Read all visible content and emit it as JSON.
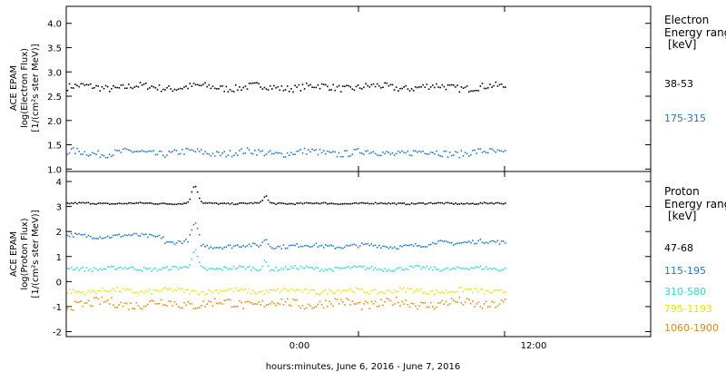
{
  "chart_data": [
    {
      "type": "scatter",
      "panel": "electron",
      "ylabel_lines": [
        "ACE EPAM",
        "log(Electron Flux)",
        "[1/(cm²s ster MeV)]"
      ],
      "ylim": [
        0.95,
        4.35
      ],
      "yticks": [
        "1.0",
        "1.5",
        "2.0",
        "2.5",
        "3.0",
        "3.5",
        "4.0"
      ],
      "ytick_values": [
        1.0,
        1.5,
        2.0,
        2.5,
        3.0,
        3.5,
        4.0
      ],
      "legend_title": [
        "Electron",
        "Energy ranges",
        "[keV]"
      ],
      "series": [
        {
          "name": "38-53",
          "color": "#000000",
          "base": 2.7,
          "spread": 0.07
        },
        {
          "name": "175-315",
          "color": "#1e78d2",
          "base": 1.35,
          "spread": 0.07
        }
      ]
    },
    {
      "type": "scatter",
      "panel": "proton",
      "ylabel_lines": [
        "ACE EPAM",
        "log(Proton Flux)",
        "[1/(cm²s ster MeV)]"
      ],
      "ylim": [
        -2.2,
        4.4
      ],
      "yticks": [
        "-2",
        "-1",
        "0",
        "1",
        "2",
        "3",
        "4"
      ],
      "ytick_values": [
        -2,
        -1,
        0,
        1,
        2,
        3,
        4
      ],
      "legend_title": [
        "Proton",
        "Energy ranges",
        "[keV]"
      ],
      "series": [
        {
          "name": "47-68",
          "color": "#000000",
          "base": 3.15,
          "spread": 0.03
        },
        {
          "name": "115-195",
          "color": "#1e78d2",
          "base": 1.6,
          "spread": 0.08
        },
        {
          "name": "310-580",
          "color": "#22e0d2",
          "base": 0.55,
          "spread": 0.08
        },
        {
          "name": "795-1193",
          "color": "#e6e600",
          "base": -0.35,
          "spread": 0.1
        },
        {
          "name": "1060-1900",
          "color": "#ee8800",
          "base": -0.85,
          "spread": 0.18
        }
      ]
    }
  ],
  "x_axis": {
    "ticks": [
      {
        "label": "0:00",
        "t": 24
      },
      {
        "label": "12:00",
        "t": 36
      }
    ],
    "range_hours": [
      0,
      48
    ],
    "data_end_hour": 36,
    "xlabel": "hours:minutes, June  6, 2016 - June  7, 2016"
  }
}
